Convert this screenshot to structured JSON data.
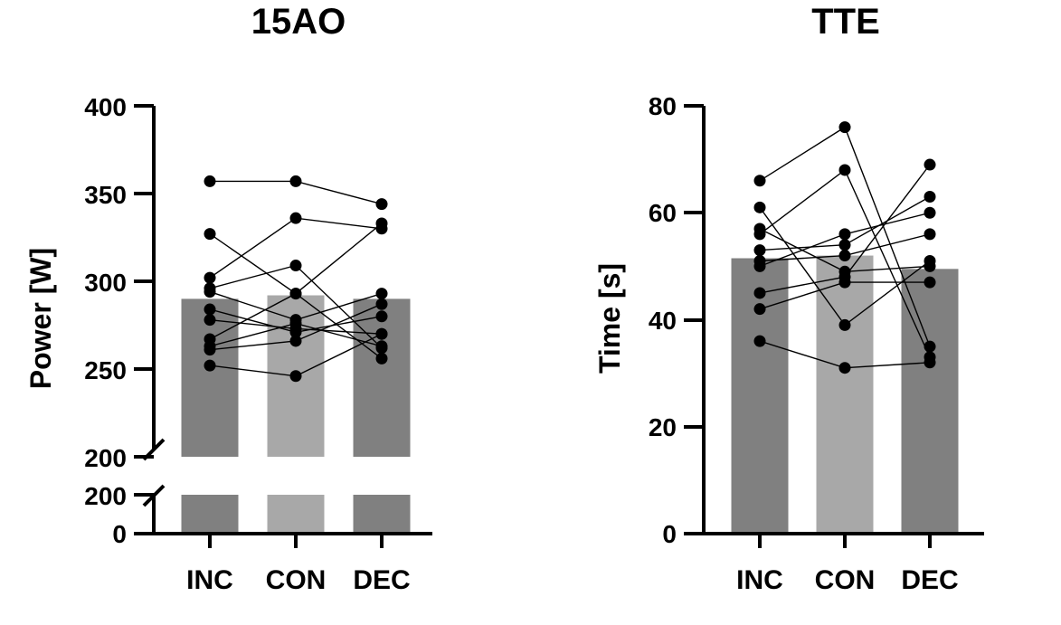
{
  "chart_data": [
    {
      "type": "bar",
      "title": "15AO",
      "xlabel": "",
      "ylabel": "Power [W]",
      "categories": [
        "INC",
        "CON",
        "DEC"
      ],
      "values": [
        290,
        292,
        290
      ],
      "bar_colors": [
        "#808080",
        "#a8a8a8",
        "#808080"
      ],
      "axis_break": {
        "lower_range": [
          0,
          200
        ],
        "upper_range": [
          200,
          400
        ]
      },
      "ylim": [
        0,
        400
      ],
      "yticks": [
        "0",
        "200",
        "200",
        "250",
        "300",
        "350",
        "400"
      ],
      "individual_series": [
        {
          "name": "s1",
          "values": [
            357,
            357,
            344
          ]
        },
        {
          "name": "s2",
          "values": [
            327,
            293,
            333
          ]
        },
        {
          "name": "s3",
          "values": [
            302,
            336,
            330
          ]
        },
        {
          "name": "s4",
          "values": [
            296,
            309,
            262
          ]
        },
        {
          "name": "s5",
          "values": [
            294,
            278,
            293
          ]
        },
        {
          "name": "s6",
          "values": [
            284,
            271,
            280
          ]
        },
        {
          "name": "s7",
          "values": [
            278,
            273,
            270
          ]
        },
        {
          "name": "s8",
          "values": [
            267,
            293,
            256
          ]
        },
        {
          "name": "s9",
          "values": [
            263,
            276,
            263
          ]
        },
        {
          "name": "s10",
          "values": [
            261,
            266,
            287
          ]
        },
        {
          "name": "s11",
          "values": [
            252,
            246,
            270
          ]
        }
      ]
    },
    {
      "type": "bar",
      "title": "TTE",
      "xlabel": "",
      "ylabel": "Time [s]",
      "categories": [
        "INC",
        "CON",
        "DEC"
      ],
      "values": [
        51.5,
        52,
        49.5
      ],
      "bar_colors": [
        "#808080",
        "#a8a8a8",
        "#808080"
      ],
      "ylim": [
        0,
        80
      ],
      "yticks": [
        "0",
        "20",
        "40",
        "60",
        "80"
      ],
      "individual_series": [
        {
          "name": "s1",
          "values": [
            66,
            76,
            35
          ]
        },
        {
          "name": "s2",
          "values": [
            61,
            39,
            51
          ]
        },
        {
          "name": "s3",
          "values": [
            57,
            49,
            50
          ]
        },
        {
          "name": "s4",
          "values": [
            56,
            68,
            33
          ]
        },
        {
          "name": "s5",
          "values": [
            53,
            54,
            63
          ]
        },
        {
          "name": "s6",
          "values": [
            51,
            52,
            56
          ]
        },
        {
          "name": "s7",
          "values": [
            50,
            56,
            60
          ]
        },
        {
          "name": "s8",
          "values": [
            45,
            48,
            69
          ]
        },
        {
          "name": "s9",
          "values": [
            42,
            47,
            47
          ]
        },
        {
          "name": "s10",
          "values": [
            36,
            31,
            32
          ]
        }
      ]
    }
  ]
}
